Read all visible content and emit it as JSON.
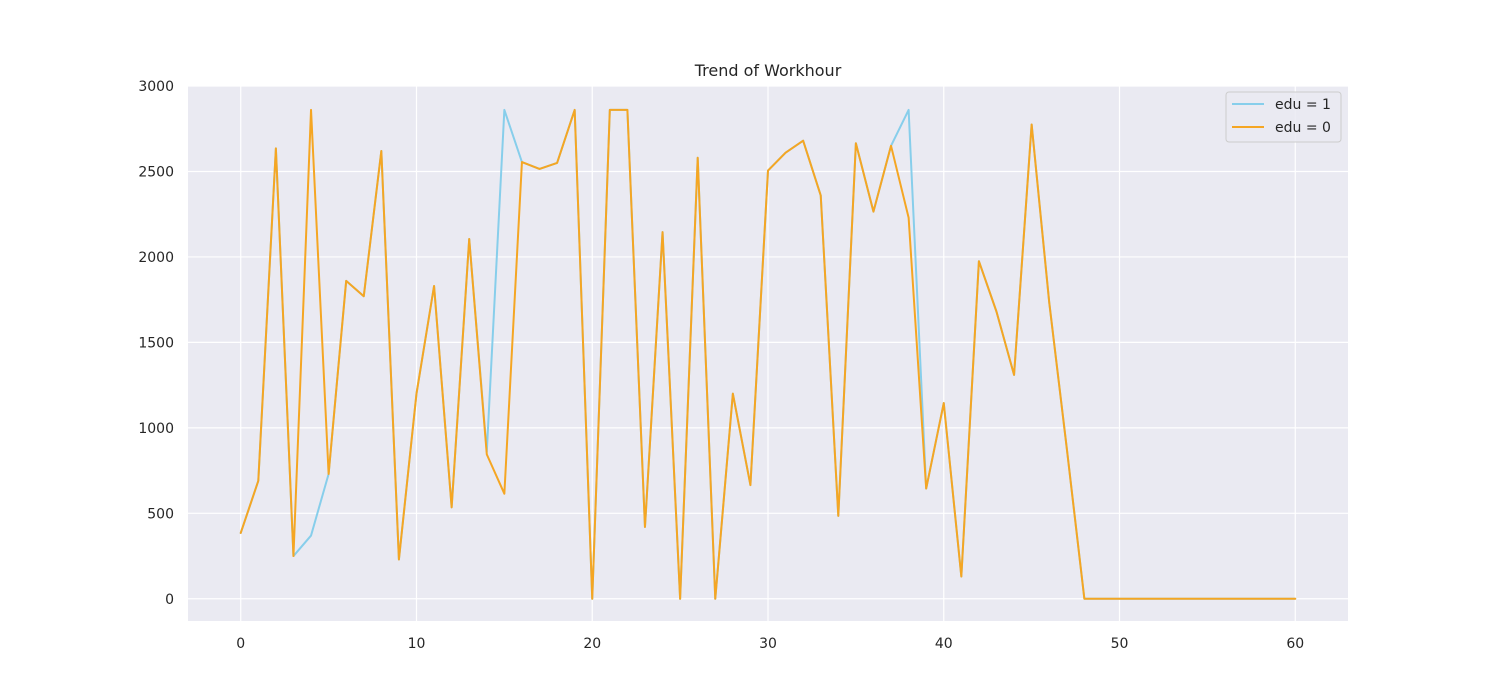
{
  "chart_data": {
    "type": "line",
    "title": "Trend of Workhour",
    "xlabel": "",
    "ylabel": "",
    "xlim": [
      -3,
      63
    ],
    "ylim": [
      -130,
      3000
    ],
    "x_ticks": [
      0,
      10,
      20,
      30,
      40,
      50,
      60
    ],
    "y_ticks": [
      0,
      500,
      1000,
      1500,
      2000,
      2500,
      3000
    ],
    "grid": true,
    "legend_position": "top-right",
    "background_color": "#eaeaf2",
    "grid_color": "#ffffff",
    "series": [
      {
        "name": "edu = 1",
        "color": "#87ceeb",
        "x": [
          0,
          1,
          2,
          3,
          4,
          5,
          6,
          7,
          8,
          9,
          10,
          11,
          12,
          13,
          14,
          15,
          16,
          17,
          18,
          19,
          20,
          21,
          22,
          23,
          24,
          25,
          26,
          27,
          28,
          29,
          30,
          31,
          32,
          33,
          34,
          35,
          36,
          37,
          38,
          39,
          40,
          41,
          42,
          43,
          44,
          45,
          46,
          47,
          48,
          49,
          50,
          51,
          52,
          53,
          54,
          55,
          56,
          57,
          58,
          59,
          60
        ],
        "values": [
          385,
          690,
          2635,
          250,
          370,
          730,
          1860,
          1770,
          2620,
          230,
          1200,
          1830,
          535,
          2105,
          860,
          2860,
          2555,
          2515,
          2550,
          2860,
          0,
          2860,
          2860,
          420,
          2145,
          0,
          2580,
          0,
          1200,
          665,
          2505,
          2610,
          2680,
          2360,
          485,
          2665,
          2265,
          2650,
          2860,
          645,
          1145,
          130,
          1975,
          1680,
          1310,
          2775,
          1735,
          880,
          0,
          0,
          0,
          0,
          0,
          0,
          0,
          0,
          0,
          0,
          0,
          0,
          0
        ]
      },
      {
        "name": "edu = 0",
        "color": "#f5a623",
        "x": [
          0,
          1,
          2,
          3,
          4,
          5,
          6,
          7,
          8,
          9,
          10,
          11,
          12,
          13,
          14,
          15,
          16,
          17,
          18,
          19,
          20,
          21,
          22,
          23,
          24,
          25,
          26,
          27,
          28,
          29,
          30,
          31,
          32,
          33,
          34,
          35,
          36,
          37,
          38,
          39,
          40,
          41,
          42,
          43,
          44,
          45,
          46,
          47,
          48,
          49,
          50,
          51,
          52,
          53,
          54,
          55,
          56,
          57,
          58,
          59,
          60
        ],
        "values": [
          385,
          690,
          2635,
          250,
          2860,
          730,
          1860,
          1770,
          2620,
          230,
          1200,
          1830,
          535,
          2105,
          845,
          615,
          2555,
          2515,
          2550,
          2860,
          0,
          2860,
          2860,
          420,
          2145,
          0,
          2580,
          0,
          1200,
          665,
          2505,
          2610,
          2680,
          2360,
          485,
          2665,
          2265,
          2650,
          2230,
          645,
          1145,
          130,
          1975,
          1680,
          1310,
          2775,
          1735,
          880,
          0,
          0,
          0,
          0,
          0,
          0,
          0,
          0,
          0,
          0,
          0,
          0,
          0
        ]
      }
    ]
  }
}
